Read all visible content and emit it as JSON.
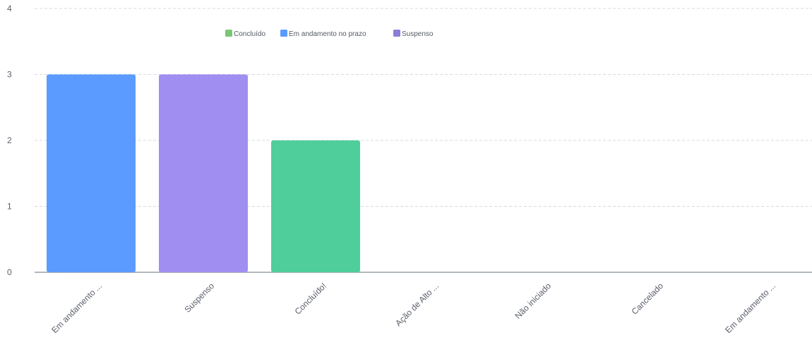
{
  "chart_data": {
    "type": "bar",
    "title": "",
    "xlabel": "",
    "ylabel": "",
    "categories": [
      "Em andamento ...",
      "Suspenso",
      "Concluído!",
      "Ação de Alto ...",
      "Não iniciado",
      "Cancelado",
      "Em andamento ..."
    ],
    "values": [
      3,
      3,
      2,
      0,
      0,
      0,
      0
    ],
    "bar_colors": [
      "#5b9bff",
      "#a08ff0",
      "#4fce9b",
      "#5b9bff",
      "#5b9bff",
      "#5b9bff",
      "#5b9bff"
    ],
    "ylim": [
      0,
      4
    ],
    "yticks": [
      0,
      1,
      2,
      3,
      4
    ],
    "grid": true,
    "legend": {
      "placement": "top-center",
      "entries": [
        {
          "label": "Concluído",
          "color": "#7cc576"
        },
        {
          "label": "Em andamento no prazo",
          "color": "#5b9bff"
        },
        {
          "label": "Suspenso",
          "color": "#8a7fd6"
        }
      ]
    }
  }
}
